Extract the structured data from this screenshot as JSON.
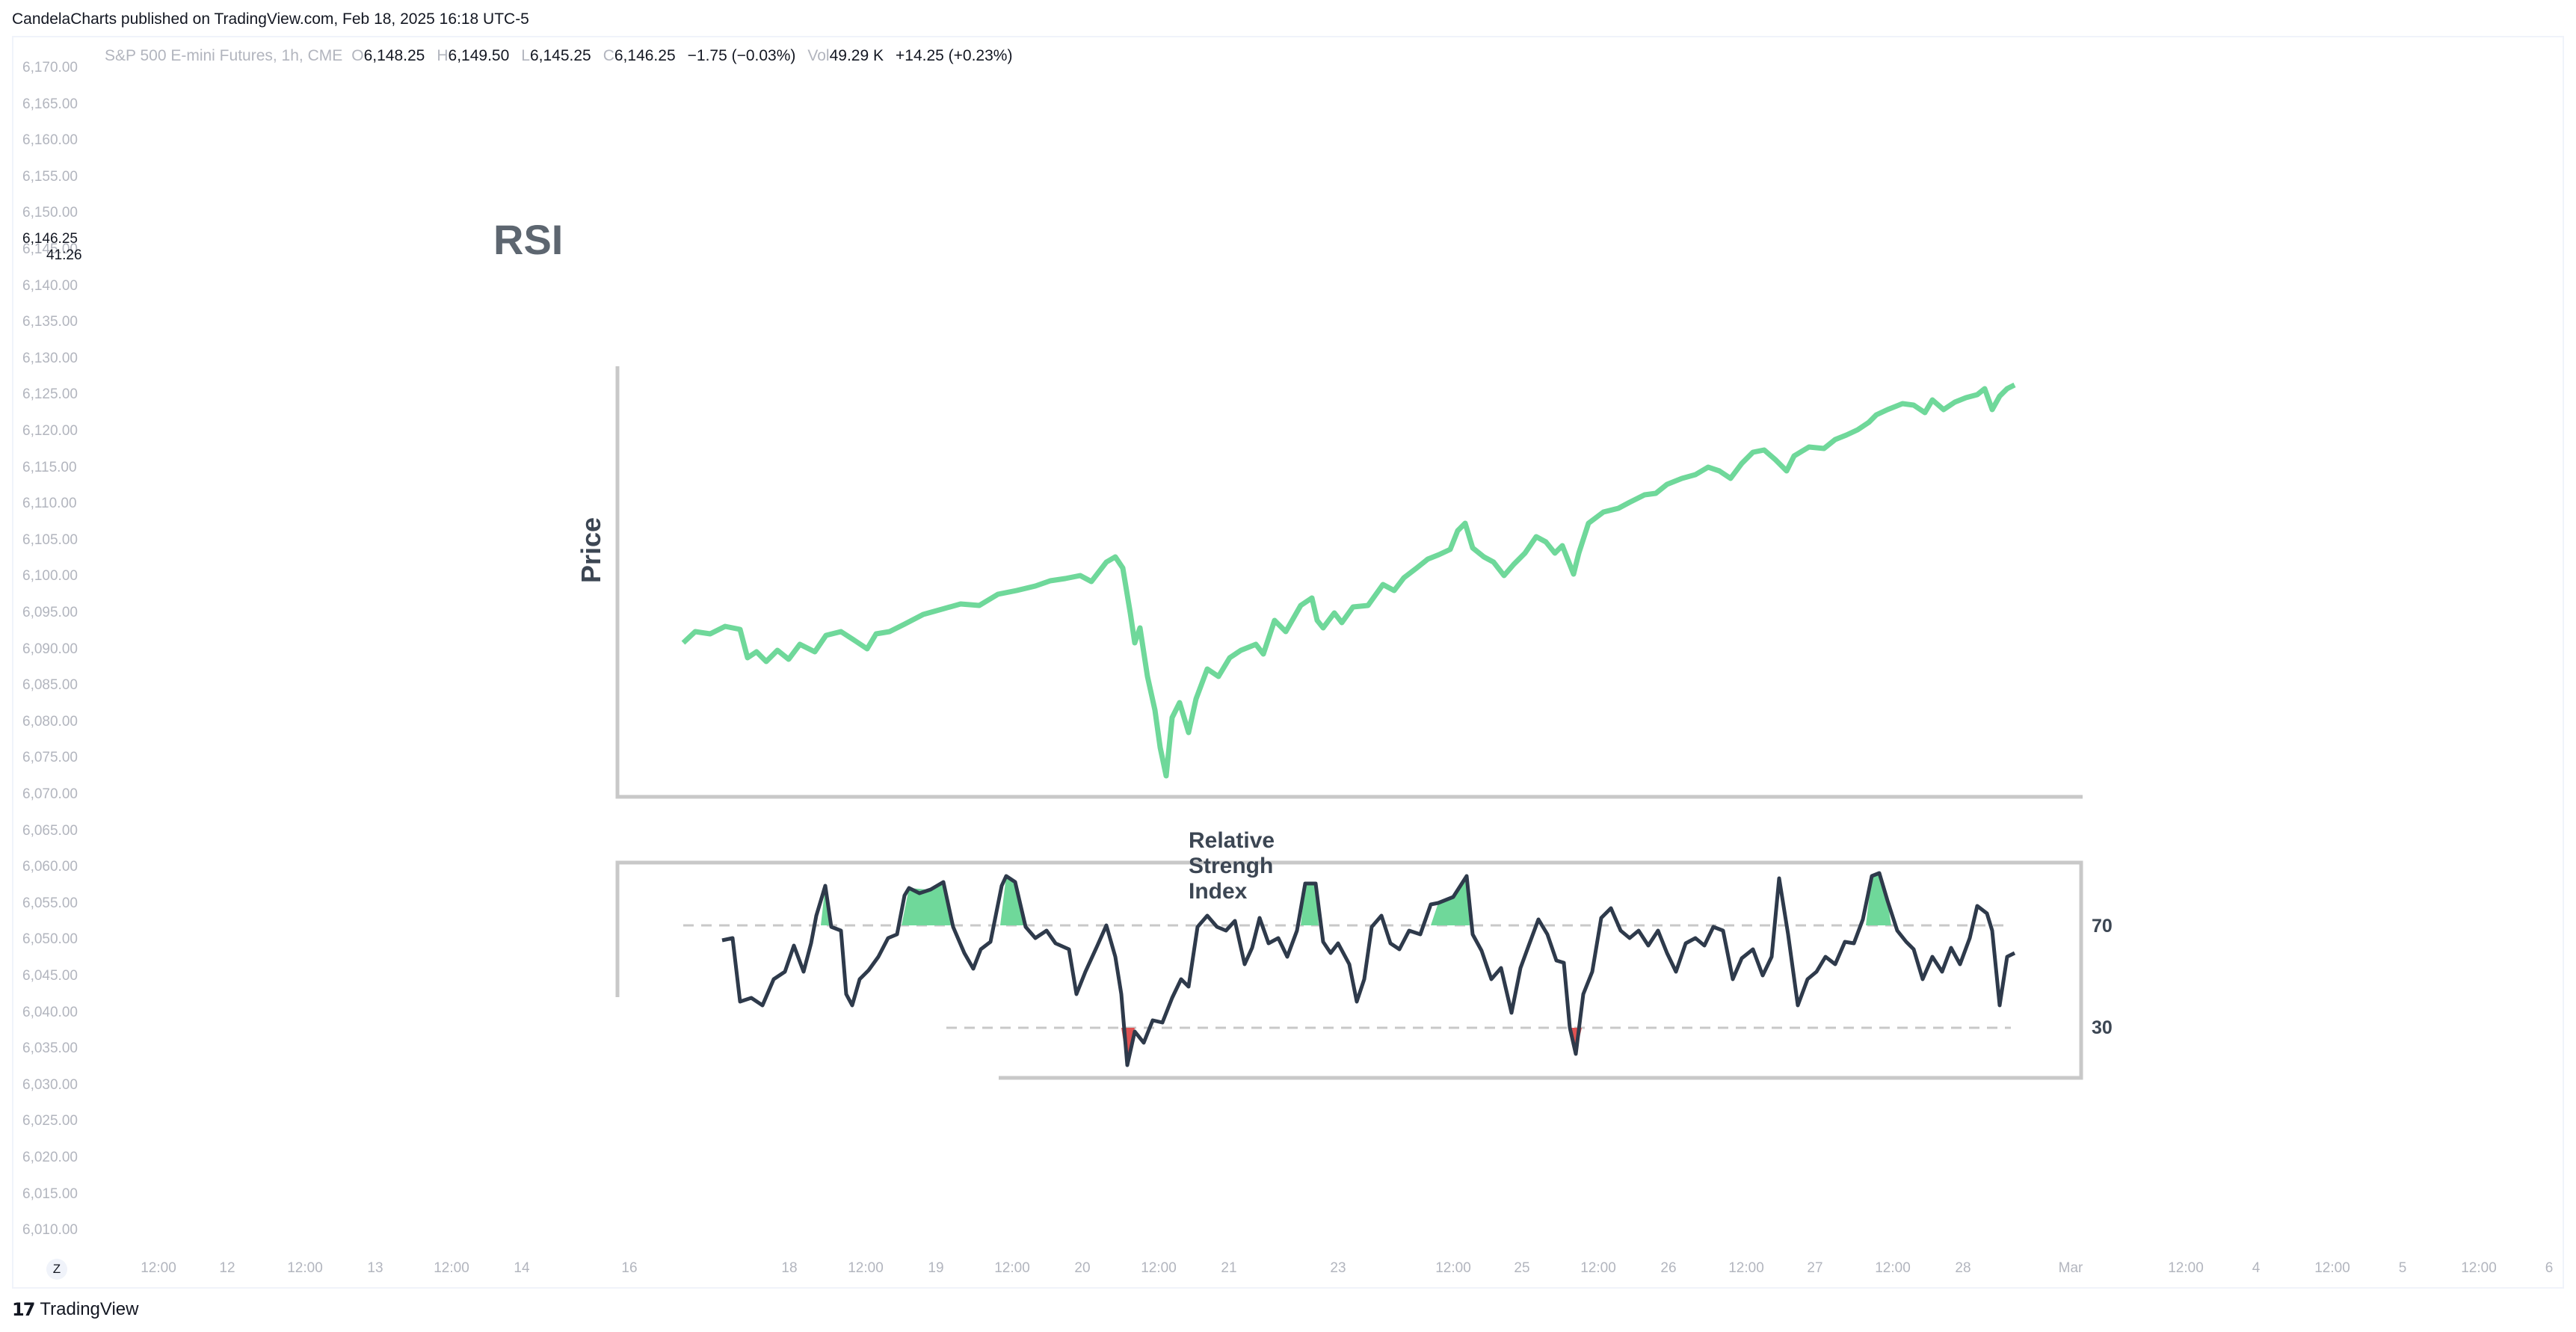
{
  "publish_header": "CandelaCharts published on TradingView.com, Feb 18, 2025 16:18 UTC-5",
  "legend": {
    "symbol": "S&P 500 E-mini Futures, 1h, CME",
    "open_label": "O",
    "open": "6,148.25",
    "high_label": "H",
    "high": "6,149.50",
    "low_label": "L",
    "low": "6,145.25",
    "close_label": "C",
    "close": "6,146.25",
    "change": "−1.75 (−0.03%)",
    "vol_label": "Vol",
    "vol": "49.29 K",
    "vol_change": "+14.25 (+0.23%)"
  },
  "price_axis": {
    "ticks": [
      "6,170.00",
      "6,165.00",
      "6,160.00",
      "6,155.00",
      "6,150.00",
      "6,145.00",
      "6,140.00",
      "6,135.00",
      "6,130.00",
      "6,125.00",
      "6,120.00",
      "6,115.00",
      "6,110.00",
      "6,105.00",
      "6,100.00",
      "6,095.00",
      "6,090.00",
      "6,085.00",
      "6,080.00",
      "6,075.00",
      "6,070.00",
      "6,065.00",
      "6,060.00",
      "6,055.00",
      "6,050.00",
      "6,045.00",
      "6,040.00",
      "6,035.00",
      "6,030.00",
      "6,025.00",
      "6,020.00",
      "6,015.00",
      "6,010.00"
    ],
    "current_price": "6,146.25",
    "countdown": "41:26"
  },
  "time_axis": {
    "ticks": [
      "12:00",
      "12",
      "12:00",
      "13",
      "12:00",
      "14",
      "16",
      "18",
      "12:00",
      "19",
      "12:00",
      "20",
      "12:00",
      "21",
      "23",
      "12:00",
      "25",
      "12:00",
      "26",
      "12:00",
      "27",
      "12:00",
      "28",
      "Mar",
      "12:00",
      "4",
      "12:00",
      "5",
      "12:00",
      "6"
    ],
    "zoom_button": "Z"
  },
  "brand": {
    "logo_mark": "17",
    "name": "TradingView"
  },
  "embedded_image": {
    "title": "RSI",
    "price_axis_label": "Price",
    "rsi_title": "Relative Strengh Index",
    "level_high": "70",
    "level_low": "30"
  },
  "colors": {
    "price_line": "#6fd89a",
    "rsi_line": "#2e3a4b",
    "overbought_fill": "#6fd89a",
    "oversold_fill": "#e05252",
    "axis": "#c8c8c8",
    "tick_text": "#b2b5be"
  }
}
